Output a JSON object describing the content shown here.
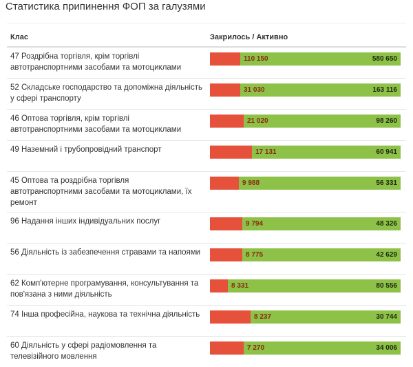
{
  "title": "Статистика припинення ФОП за галузями",
  "chart_data": {
    "type": "table",
    "columns": [
      "Клас",
      "Закрилось / Активно"
    ],
    "colors": {
      "closed": "#e5513a",
      "active": "#8dc147"
    },
    "rows": [
      {
        "label": "47 Роздрібна торгівля, крім торгівлі автотранспортними засобами та мотоциклами",
        "closed": 110150,
        "active": 580650,
        "closed_text": "110 150",
        "active_text": "580 650"
      },
      {
        "label": "52 Складське господарство та допоміжна діяльність у сфері транспорту",
        "closed": 31030,
        "active": 163116,
        "closed_text": "31 030",
        "active_text": "163 116"
      },
      {
        "label": "46 Оптова торгівля, крім торгівлі автотранспортними засобами та мотоциклами",
        "closed": 21020,
        "active": 98260,
        "closed_text": "21 020",
        "active_text": "98 260"
      },
      {
        "label": "49 Наземний і трубопровідний транспорт",
        "closed": 17131,
        "active": 60941,
        "closed_text": "17 131",
        "active_text": "60 941"
      },
      {
        "label": "45 Оптова та роздрібна торгівля автотранспортними засобами та мотоциклами, їх ремонт",
        "closed": 9988,
        "active": 56331,
        "closed_text": "9 988",
        "active_text": "56 331"
      },
      {
        "label": "96 Надання інших індивідуальних послуг",
        "closed": 9794,
        "active": 48326,
        "closed_text": "9 794",
        "active_text": "48 326"
      },
      {
        "label": "56 Діяльність із забезпечення стравами та напоями",
        "closed": 8775,
        "active": 42629,
        "closed_text": "8 775",
        "active_text": "42 629"
      },
      {
        "label": "62 Комп'ютерне програмування, консультування та пов'язана з ними діяльність",
        "closed": 8331,
        "active": 80556,
        "closed_text": "8 331",
        "active_text": "80 556"
      },
      {
        "label": "74 Інша професійна, наукова та технічна діяльність",
        "closed": 8237,
        "active": 30744,
        "closed_text": "8 237",
        "active_text": "30 744"
      },
      {
        "label": "60 Діяльність у сфері радіомовлення та телевізійного мовлення",
        "closed": 7270,
        "active": 34006,
        "closed_text": "7 270",
        "active_text": "34 006"
      }
    ]
  }
}
